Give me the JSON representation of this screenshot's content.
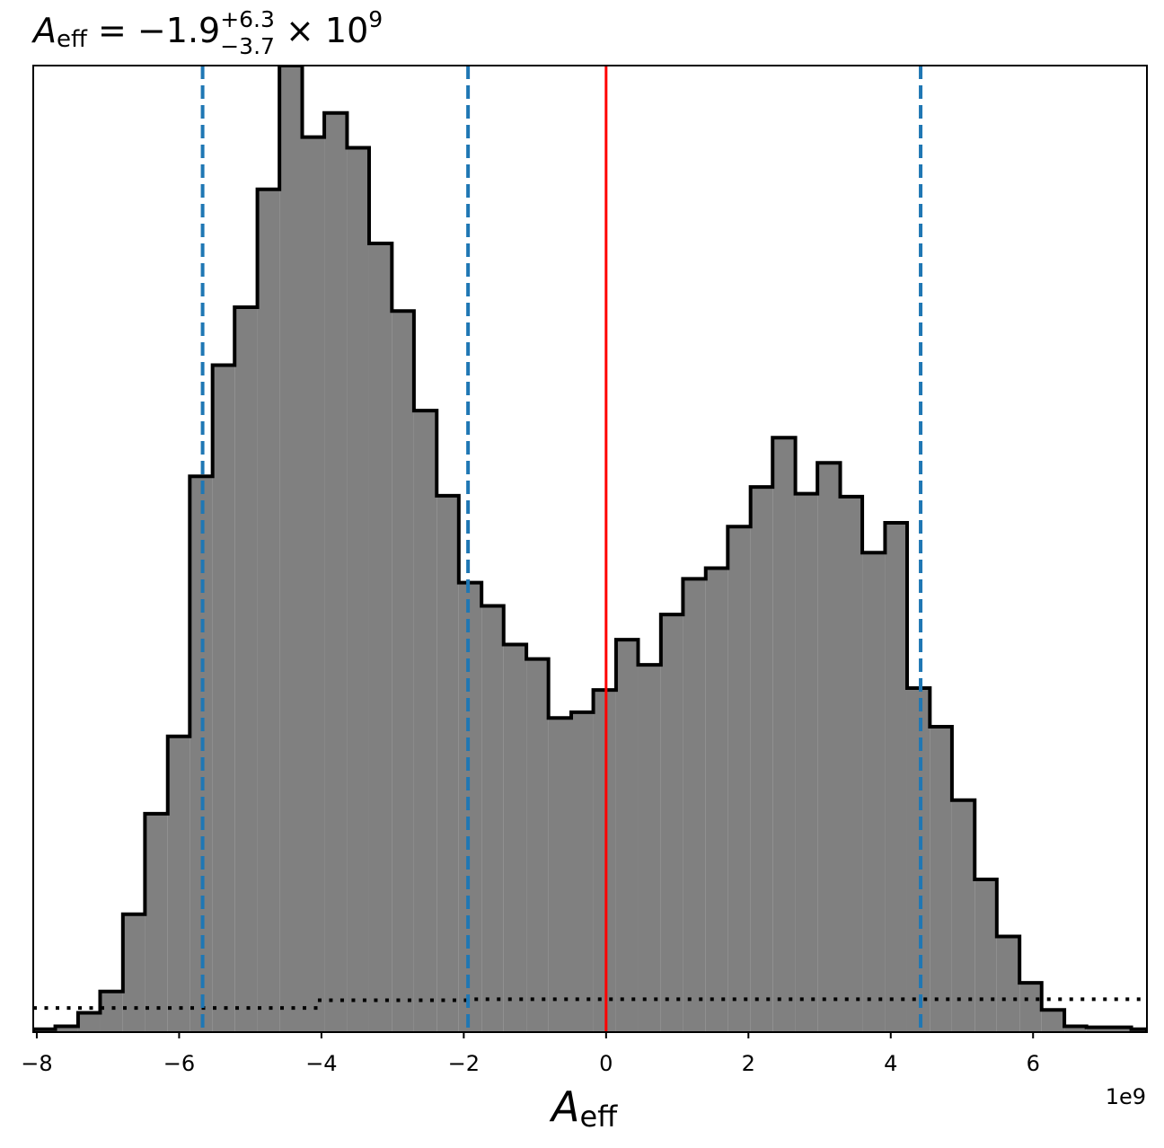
{
  "chart_data": {
    "type": "histogram",
    "title": {
      "symbol": "A",
      "symbol_subscript": "eff",
      "equals": " = ",
      "median": "−1.9",
      "plus": "+6.3",
      "minus": "−3.7",
      "times": " × 10",
      "exponent": "9"
    },
    "xlabel": {
      "symbol": "A",
      "subscript": "eff"
    },
    "ylabel": "",
    "x_offset_label": "1e9",
    "xlim": [
      -8.05,
      7.6
    ],
    "ylim": [
      0,
      100
    ],
    "x_ticks": [
      -8,
      -6,
      -4,
      -2,
      0,
      2,
      4,
      6
    ],
    "x_tick_labels": [
      "−8",
      "−6",
      "−4",
      "−2",
      "0",
      "2",
      "4",
      "6"
    ],
    "y_ticks_shown": false,
    "bin_edges": [
      -8.05,
      -7.74,
      -7.42,
      -7.11,
      -6.79,
      -6.48,
      -6.16,
      -5.85,
      -5.53,
      -5.22,
      -4.9,
      -4.59,
      -4.27,
      -3.96,
      -3.64,
      -3.33,
      -3.01,
      -2.7,
      -2.38,
      -2.07,
      -1.75,
      -1.44,
      -1.12,
      -0.81,
      -0.49,
      -0.18,
      0.14,
      0.45,
      0.77,
      1.08,
      1.4,
      1.71,
      2.03,
      2.34,
      2.66,
      2.97,
      3.29,
      3.6,
      3.92,
      4.23,
      4.55,
      4.86,
      5.18,
      5.49,
      5.81,
      6.12,
      6.44,
      6.75,
      7.07,
      7.38,
      7.6
    ],
    "counts": [
      0.3,
      0.6,
      2.0,
      4.2,
      12.2,
      22.6,
      30.6,
      57.5,
      69.0,
      75.0,
      87.2,
      100.0,
      92.6,
      95.1,
      91.5,
      81.6,
      74.6,
      64.3,
      55.5,
      46.5,
      44.1,
      40.1,
      38.6,
      32.5,
      33.1,
      35.4,
      40.6,
      38.0,
      43.2,
      46.9,
      48.0,
      52.3,
      56.4,
      61.5,
      55.7,
      58.9,
      55.4,
      49.6,
      52.7,
      35.6,
      31.6,
      24.0,
      15.8,
      9.9,
      5.1,
      2.3,
      0.6,
      0.5,
      0.5,
      0.3
    ],
    "fill_color": "#808080",
    "edge_color": "#000000",
    "quantile_lines": [
      -5.67,
      -1.94,
      4.42
    ],
    "quantile_color": "#1f77b4",
    "reference_line": 0,
    "reference_color": "#ff0000",
    "prior": {
      "style": "dotted",
      "color": "#000000",
      "segments": [
        {
          "x": [
            -8.05,
            -4.05
          ],
          "y": 2.5
        },
        {
          "x": [
            -4.05,
            -1.85
          ],
          "y": 3.3
        },
        {
          "x": [
            -1.85,
            7.6
          ],
          "y": 3.4
        }
      ]
    }
  }
}
